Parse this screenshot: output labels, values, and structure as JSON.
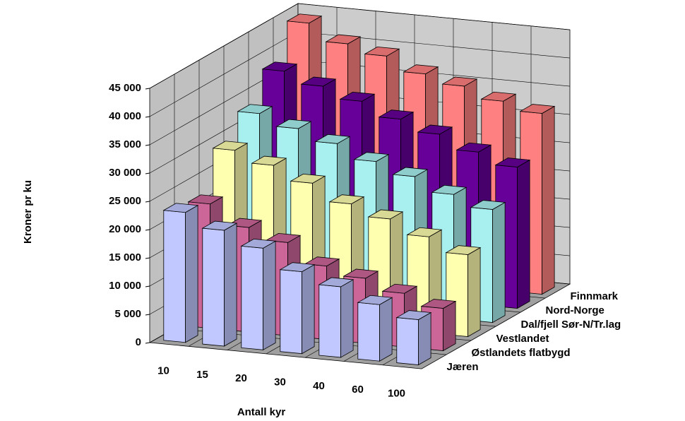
{
  "chart_data": {
    "type": "bar3d",
    "y_label": "Kroner pr ku",
    "x_label": "Antall kyr",
    "categories": [
      "10",
      "15",
      "20",
      "30",
      "40",
      "60",
      "100"
    ],
    "series": [
      {
        "name": "Jæren",
        "color": "#c0c8ff",
        "values": [
          23000,
          20500,
          18000,
          14500,
          12500,
          10000,
          8000
        ]
      },
      {
        "name": "Østlandets flatbygd",
        "color": "#cc6699",
        "values": [
          22000,
          18500,
          16500,
          13000,
          11500,
          9500,
          7500
        ]
      },
      {
        "name": "Vestlandet",
        "color": "#ffffb0",
        "values": [
          29000,
          27000,
          24500,
          21500,
          19500,
          17000,
          14500
        ]
      },
      {
        "name": "Dal/fjell Sør-N/Tr.lag",
        "color": "#a8f0f0",
        "values": [
          33000,
          31000,
          29000,
          26500,
          24500,
          22000,
          20000
        ]
      },
      {
        "name": "Nord-Norge",
        "color": "#660099",
        "values": [
          38000,
          36000,
          34000,
          31500,
          29500,
          27000,
          25000
        ]
      },
      {
        "name": "Finnmark",
        "color": "#ff8080",
        "values": [
          44000,
          41000,
          39500,
          37000,
          35500,
          33500,
          32000
        ]
      }
    ],
    "ylim": [
      0,
      45000
    ],
    "yticks": [
      0,
      {
        "value": 5000,
        "label": "5 000"
      },
      {
        "value": 10000,
        "label": "10 000"
      },
      {
        "value": 15000,
        "label": "15 000"
      },
      {
        "value": 20000,
        "label": "20 000"
      },
      {
        "value": 25000,
        "label": "25 000"
      },
      {
        "value": 30000,
        "label": "30 000"
      },
      {
        "value": 35000,
        "label": "35 000"
      },
      {
        "value": 40000,
        "label": "40 000"
      },
      {
        "value": 45000,
        "label": "45 000"
      }
    ],
    "grid": true
  }
}
